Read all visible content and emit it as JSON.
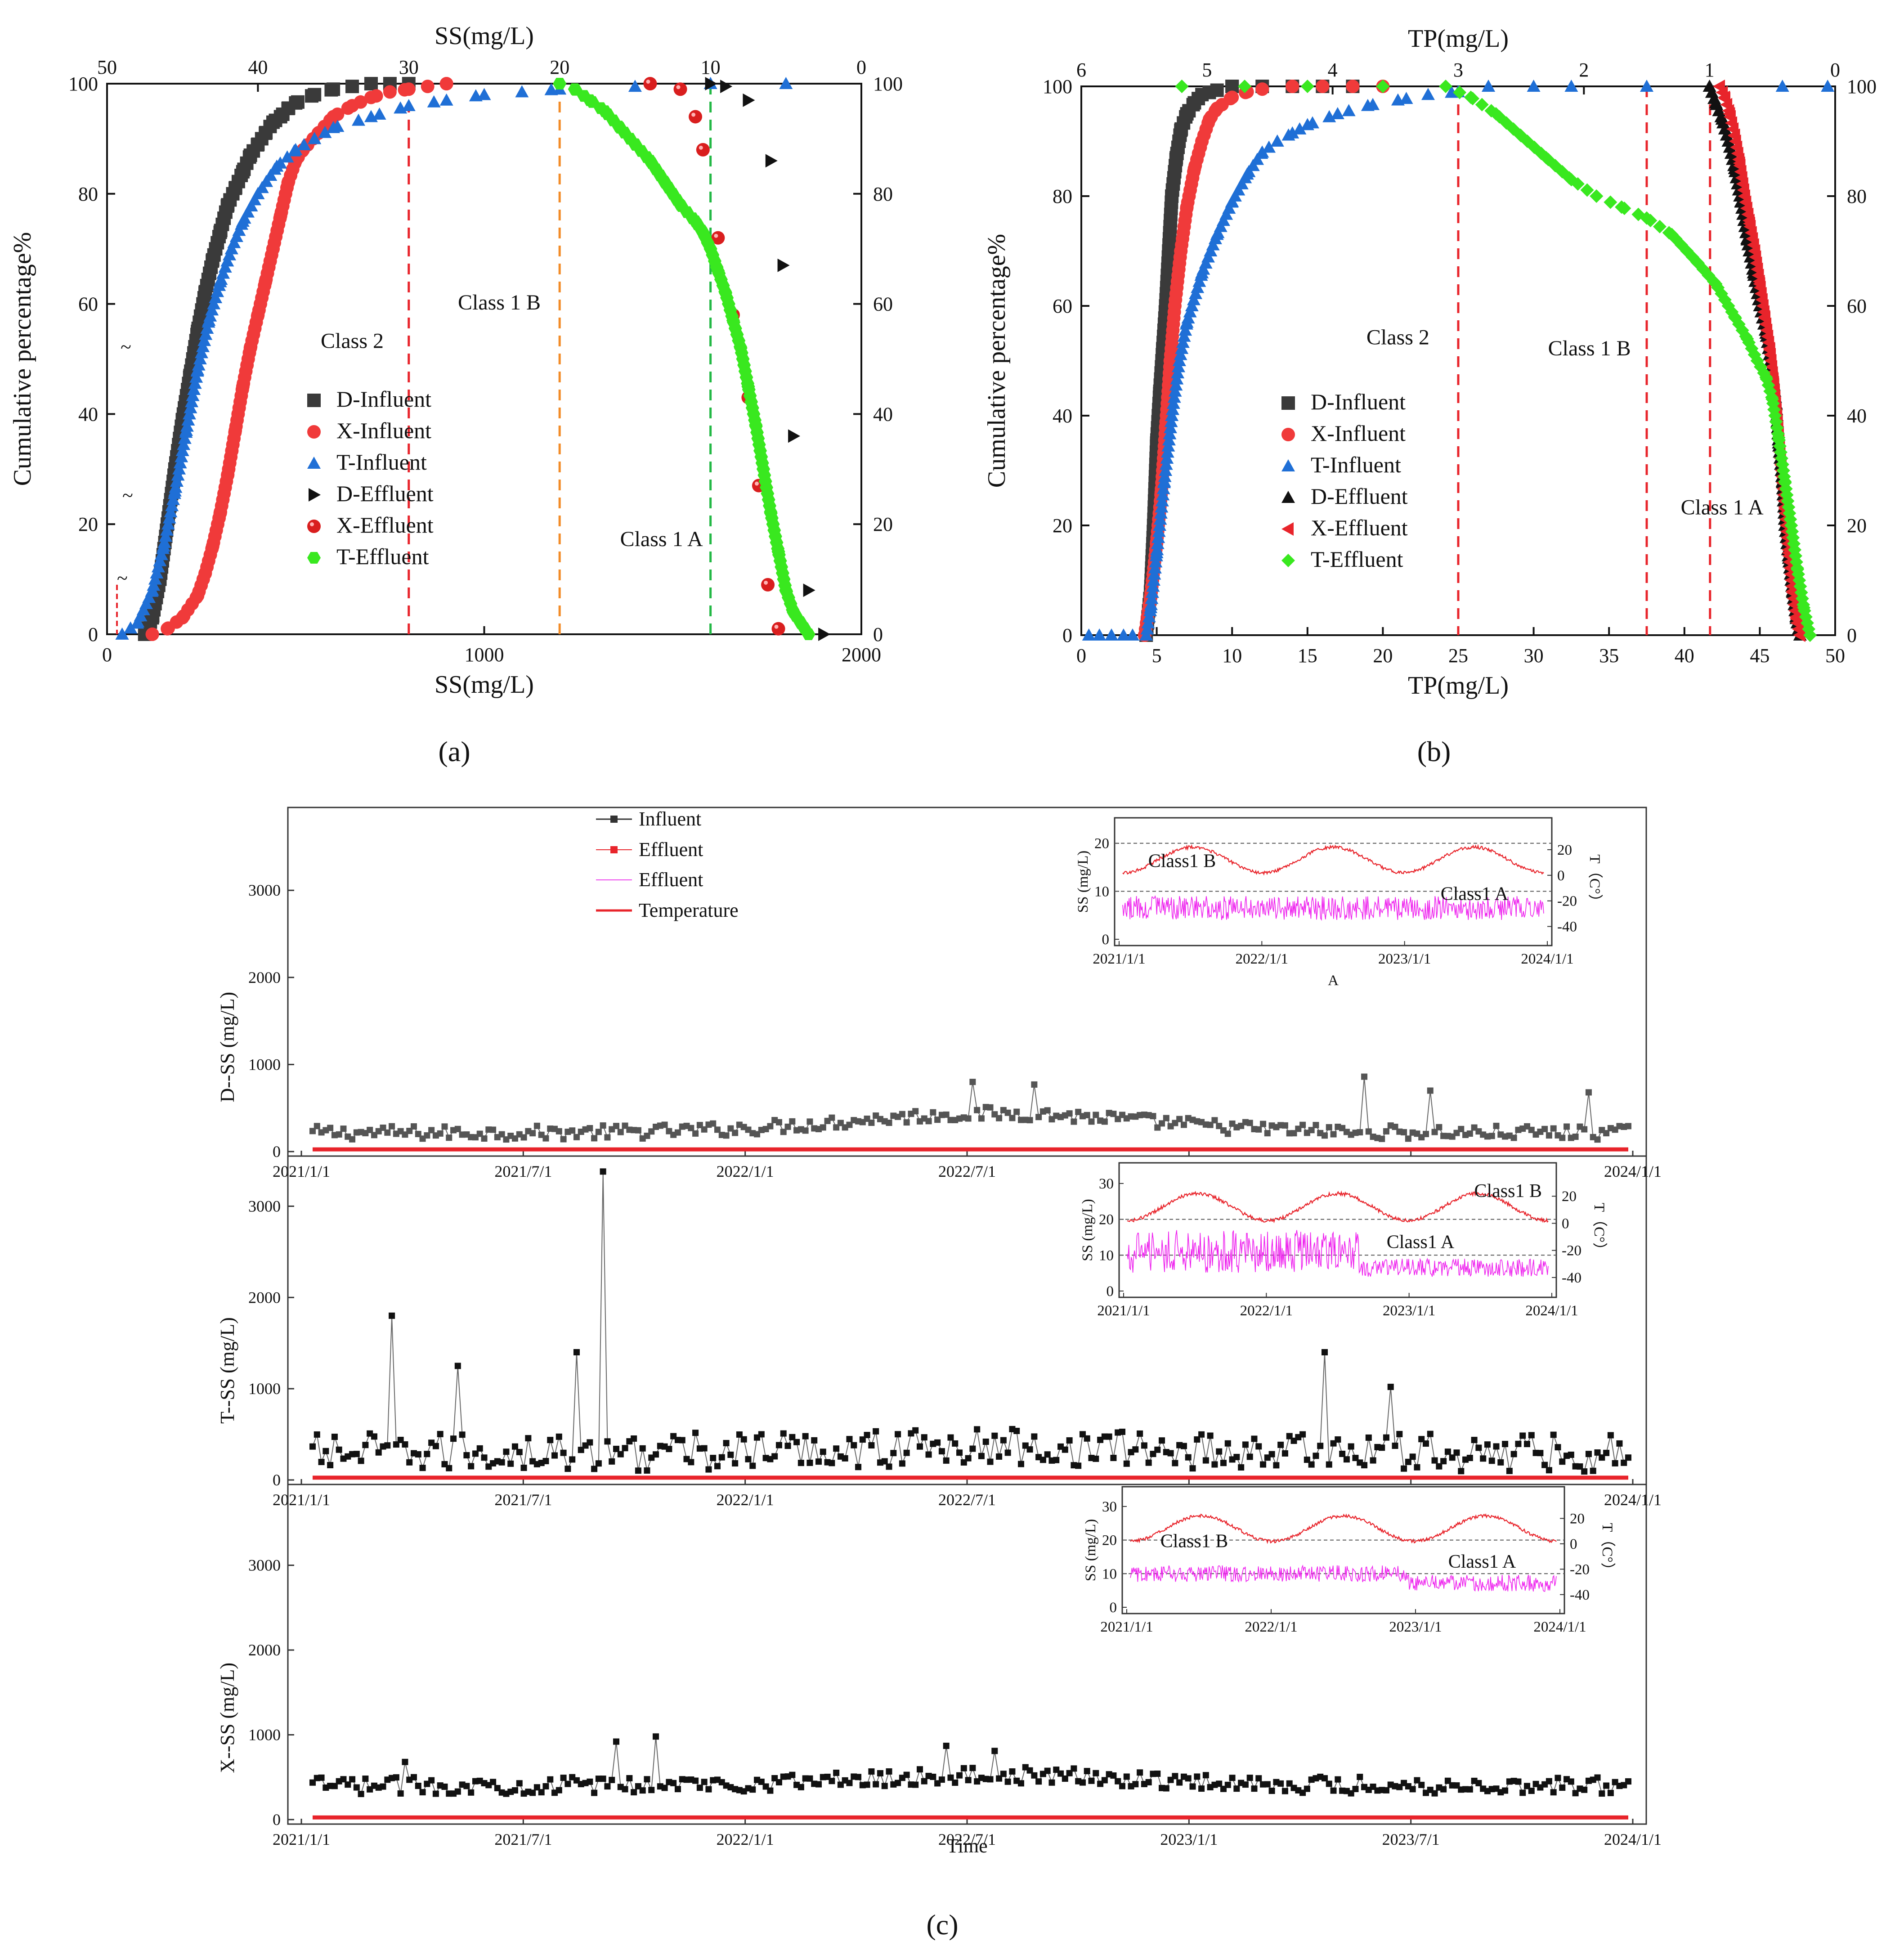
{
  "chart_data": [
    {
      "id": "a",
      "type": "scatter",
      "caption": "(a)",
      "xlabel_bottom": "SS(mg/L)",
      "xlabel_top": "SS(mg/L)",
      "ylabel_left": "Cumulative percentage%",
      "xlim_bottom": [
        0,
        2000
      ],
      "xlim_top": [
        50,
        0
      ],
      "ylim": [
        0,
        100
      ],
      "xticks_bottom": [
        0,
        1000,
        2000
      ],
      "xticks_top": [
        50,
        40,
        30,
        20,
        10,
        0
      ],
      "yticks": [
        0,
        20,
        40,
        60,
        80,
        100
      ],
      "threshold_lines": [
        {
          "x": 800,
          "color": "#e8242b"
        },
        {
          "x": 1200,
          "color": "#f28c28"
        },
        {
          "x": 1600,
          "color": "#22b845"
        }
      ],
      "class_labels": [
        {
          "text": "Class 2",
          "x": 650,
          "y": 52
        },
        {
          "text": "Class 1 B",
          "x": 1040,
          "y": 59
        },
        {
          "text": "Class 1 A",
          "x": 1470,
          "y": 16
        }
      ],
      "legend": [
        "D-Influent",
        "X-Influent",
        "T-Influent",
        "D-Effluent",
        "X-Effluent",
        "T-Effluent"
      ],
      "series": [
        {
          "name": "D-Influent",
          "axis": "bottom",
          "marker": "square",
          "color": "#3a3a3a",
          "dense": true,
          "x": [
            100,
            120,
            140,
            160,
            180,
            200,
            220,
            240,
            260,
            280,
            300,
            320,
            340,
            360,
            380,
            400,
            420,
            440,
            460,
            480,
            500,
            550,
            600,
            650,
            700,
            750,
            800
          ],
          "y": [
            0,
            3,
            10,
            20,
            30,
            39,
            47,
            55,
            62,
            68,
            73,
            78,
            81,
            84,
            87,
            89,
            91,
            93,
            94,
            95.5,
            96.5,
            98,
            99,
            99.5,
            100,
            100,
            100
          ]
        },
        {
          "name": "X-Influent",
          "axis": "bottom",
          "marker": "circle",
          "color": "#f03a3a",
          "dense": true,
          "x": [
            120,
            160,
            200,
            240,
            260,
            280,
            300,
            320,
            340,
            360,
            380,
            400,
            420,
            440,
            460,
            480,
            500,
            520,
            560,
            600,
            650,
            700,
            750,
            800,
            850,
            900
          ],
          "y": [
            0,
            1,
            3,
            7,
            11,
            16,
            22,
            29,
            37,
            45,
            52,
            58,
            64,
            70,
            76,
            82,
            86,
            88,
            91,
            94,
            96,
            97.5,
            98.5,
            99,
            99.5,
            100
          ]
        },
        {
          "name": "T-Influent",
          "axis": "bottom",
          "marker": "triangle",
          "color": "#1f6fd6",
          "dense": true,
          "x": [
            40,
            80,
            120,
            150,
            180,
            210,
            240,
            270,
            300,
            330,
            360,
            400,
            450,
            500,
            550,
            600,
            700,
            800,
            900,
            1000,
            1100,
            1200,
            1400,
            1600,
            1800
          ],
          "y": [
            0,
            2,
            8,
            16,
            26,
            37,
            48,
            57,
            64,
            70,
            75,
            80,
            85,
            88,
            90,
            92,
            94,
            96,
            97,
            98,
            98.5,
            99,
            99.5,
            100,
            100
          ]
        },
        {
          "name": "D-Effluent",
          "axis": "top",
          "marker": "tri-right",
          "color": "#111111",
          "dense": false,
          "x": [
            10,
            9,
            7.5,
            6,
            5.2,
            4.5,
            3.5,
            2.5
          ],
          "y": [
            100,
            99.5,
            97,
            86,
            67,
            36,
            8,
            0
          ]
        },
        {
          "name": "X-Effluent",
          "axis": "top",
          "marker": "sphere",
          "color": "#d91e1e",
          "dense": false,
          "x": [
            14,
            12,
            11,
            10.5,
            9.5,
            8.5,
            7.5,
            6.8,
            6.2,
            5.5
          ],
          "y": [
            100,
            99,
            94,
            88,
            72,
            58,
            43,
            27,
            9,
            1
          ]
        },
        {
          "name": "T-Effluent",
          "axis": "top",
          "marker": "hexagon",
          "color": "#39e81f",
          "dense": true,
          "x": [
            20,
            19,
            18,
            17,
            16,
            15,
            14,
            13,
            12,
            11,
            10.5,
            10,
            9.5,
            9,
            8.5,
            8,
            7.5,
            7,
            6.5,
            6,
            5.5,
            5,
            4.5,
            4,
            3.5
          ],
          "y": [
            100,
            99,
            97,
            95,
            92,
            89,
            86,
            82,
            78,
            75,
            73,
            70,
            66,
            62,
            57,
            52,
            45,
            38,
            30,
            22,
            15,
            8,
            4,
            2,
            0
          ]
        }
      ],
      "stray_markers": [
        "~",
        "~",
        "~"
      ]
    },
    {
      "id": "b",
      "type": "scatter",
      "caption": "(b)",
      "xlabel_bottom": "TP(mg/L)",
      "xlabel_top": "TP(mg/L)",
      "ylabel_left": "Cumulative percentage%",
      "xlim_bottom": [
        0,
        50
      ],
      "xlim_top": [
        6,
        0
      ],
      "ylim": [
        0,
        100
      ],
      "xticks_bottom": [
        0,
        5,
        10,
        15,
        20,
        25,
        30,
        35,
        40,
        45,
        50
      ],
      "xticks_top": [
        6,
        5,
        4,
        3,
        2,
        1,
        0
      ],
      "yticks": [
        0,
        20,
        40,
        60,
        80,
        100
      ],
      "threshold_lines": [
        {
          "x": 25,
          "color": "#e8242b"
        },
        {
          "x": 37.5,
          "color": "#e8242b"
        },
        {
          "x": 41.7,
          "color": "#e8242b"
        }
      ],
      "class_labels": [
        {
          "text": "Class 2",
          "x": 21,
          "y": 53
        },
        {
          "text": "Class 1 B",
          "x": 33.7,
          "y": 51
        },
        {
          "text": "Class 1 A",
          "x": 42.5,
          "y": 22
        }
      ],
      "legend": [
        "D-Influent",
        "X-Influent",
        "T-Influent",
        "D-Effluent",
        "X-Effluent",
        "T-Effluent"
      ],
      "series": [
        {
          "name": "D-Influent",
          "axis": "bottom",
          "marker": "square",
          "color": "#3a3a3a",
          "dense": true,
          "x": [
            4.3,
            4.6,
            4.8,
            5.0,
            5.2,
            5.4,
            5.6,
            5.8,
            6.0,
            6.3,
            6.6,
            7.0,
            7.5,
            8,
            9,
            10,
            12,
            14,
            16,
            18
          ],
          "y": [
            0,
            8,
            20,
            35,
            44,
            52,
            60,
            70,
            80,
            87,
            92,
            95,
            97,
            98.5,
            99.3,
            100,
            100,
            100,
            100,
            100
          ]
        },
        {
          "name": "X-Influent",
          "axis": "bottom",
          "marker": "circle",
          "color": "#f03a3a",
          "dense": true,
          "x": [
            4.2,
            4.6,
            5.0,
            5.3,
            5.6,
            5.9,
            6.2,
            6.6,
            7.0,
            7.5,
            8.0,
            8.5,
            9.0,
            10,
            11,
            12,
            14,
            16,
            18,
            20
          ],
          "y": [
            0,
            7,
            17,
            26,
            38,
            50,
            60,
            70,
            78,
            85,
            90,
            94,
            96,
            98,
            99,
            99.5,
            100,
            100,
            100,
            100
          ]
        },
        {
          "name": "T-Influent",
          "axis": "bottom",
          "marker": "triangle",
          "color": "#1f6fd6",
          "dense": true,
          "x": [
            4.3,
            4.6,
            5,
            5.5,
            6,
            6.5,
            7,
            8,
            9,
            10,
            11,
            12,
            13,
            14,
            15,
            17,
            19,
            21,
            23,
            25,
            27
          ],
          "y": [
            0,
            5,
            15,
            28,
            40,
            50,
            57,
            66,
            73,
            79,
            84,
            88,
            90,
            91.5,
            93,
            95,
            96.5,
            97.5,
            98.5,
            99,
            100
          ]
        },
        {
          "name": "T-Influent (sparse)",
          "axis": "bottom",
          "marker": "triangle",
          "color": "#1f6fd6",
          "dense": false,
          "x": [
            0.5,
            1.2,
            2.0,
            2.8,
            3.4,
            30,
            32.5,
            37.5,
            46.5,
            49.5
          ],
          "y": [
            0,
            0,
            0,
            0,
            0,
            100,
            100,
            100,
            100,
            100
          ]
        },
        {
          "name": "D-Effluent",
          "axis": "top",
          "marker": "triangle",
          "color": "#111111",
          "dense": true,
          "x": [
            1.0,
            0.95,
            0.9,
            0.85,
            0.8,
            0.75,
            0.7,
            0.65,
            0.6,
            0.55,
            0.5,
            0.47,
            0.45,
            0.42,
            0.4,
            0.37,
            0.34,
            0.31,
            0.28
          ],
          "y": [
            100,
            97,
            94,
            90,
            85,
            79,
            72,
            66,
            60,
            55,
            48,
            42,
            35,
            28,
            20,
            14,
            8,
            3,
            0
          ]
        },
        {
          "name": "X-Effluent",
          "axis": "top",
          "marker": "tri-left",
          "color": "#e8242b",
          "dense": true,
          "x": [
            0.92,
            0.88,
            0.84,
            0.8,
            0.76,
            0.72,
            0.68,
            0.64,
            0.6,
            0.56,
            0.52,
            0.49,
            0.46,
            0.43,
            0.4,
            0.37,
            0.34,
            0.31,
            0.28
          ],
          "y": [
            100,
            98,
            95,
            91,
            86,
            80,
            75,
            70,
            64,
            58,
            52,
            46,
            39,
            31,
            23,
            15,
            8,
            3,
            0
          ]
        },
        {
          "name": "T-Effluent",
          "axis": "top",
          "marker": "diamond",
          "color": "#39e81f",
          "dense": true,
          "x": [
            5.2,
            4.7,
            4.2,
            3.6,
            3.1,
            2.9,
            2.7,
            2.5,
            2.3,
            2.1,
            1.9,
            1.7,
            1.5,
            1.3,
            1.1,
            0.95,
            0.8,
            0.7,
            0.62,
            0.55,
            0.5,
            0.45,
            0.4,
            0.35,
            0.3,
            0.25,
            0.2
          ],
          "y": [
            100,
            100,
            100,
            100,
            100,
            98,
            95,
            91,
            87,
            83,
            80,
            78,
            76,
            73,
            68,
            64,
            58,
            54,
            50,
            47,
            43,
            36,
            28,
            20,
            12,
            5,
            0
          ]
        }
      ]
    },
    {
      "id": "c",
      "type": "line",
      "caption": "(c)",
      "xlabel": "Time",
      "legend": [
        "Influent",
        "Effluent",
        "Effluent",
        "Temperature"
      ],
      "legend_colors": [
        "#333333",
        "#e8242b",
        "#ee44ee",
        "#e8242b"
      ],
      "shared_x_ticks": [
        "2021/1/1",
        "2021/7/1",
        "2022/1/1",
        "2022/7/1",
        "2023/1/1",
        "2023/7/1",
        "2024/1/1"
      ],
      "panels": [
        {
          "ylabel": "D--SS (mg/L)",
          "yticks": [
            0,
            1000,
            2000,
            3000
          ],
          "ylim": [
            0,
            3900
          ],
          "influent_base": 200,
          "influent_hump": 220,
          "influent_noise": 160,
          "influent_color": "#555555",
          "spikes": [
            {
              "t": 0.5,
              "v": 800
            },
            {
              "t": 0.55,
              "v": 770
            },
            {
              "t": 0.8,
              "v": 860
            },
            {
              "t": 0.85,
              "v": 700
            },
            {
              "t": 0.97,
              "v": 680
            }
          ]
        },
        {
          "ylabel": "T--SS (mg/L)",
          "yticks": [
            0,
            1000,
            2000,
            3000
          ],
          "ylim": [
            0,
            3500
          ],
          "influent_base": 260,
          "influent_hump": 60,
          "influent_noise": 420,
          "influent_color": "#111111",
          "spikes": [
            {
              "t": 0.06,
              "v": 1800
            },
            {
              "t": 0.22,
              "v": 3380
            },
            {
              "t": 0.2,
              "v": 1400
            },
            {
              "t": 0.77,
              "v": 1400
            },
            {
              "t": 0.82,
              "v": 1020
            },
            {
              "t": 0.11,
              "v": 1250
            }
          ]
        },
        {
          "ylabel": "X--SS (mg/L)",
          "yticks": [
            0,
            1000,
            2000,
            3000
          ],
          "ylim": [
            0,
            3900
          ],
          "influent_base": 380,
          "influent_hump": 120,
          "influent_noise": 200,
          "influent_color": "#111111",
          "spikes": [
            {
              "t": 0.07,
              "v": 680
            },
            {
              "t": 0.23,
              "v": 920
            },
            {
              "t": 0.26,
              "v": 980
            },
            {
              "t": 0.48,
              "v": 870
            },
            {
              "t": 0.52,
              "v": 810
            }
          ]
        }
      ],
      "insets": [
        {
          "panel": 0,
          "ss_label": "SS (mg/L)",
          "t_label": "T（C°）",
          "ss_ticks": [
            0,
            10,
            20
          ],
          "t_ticks": [
            20,
            0,
            -20,
            -40
          ],
          "x_ticks": [
            "2021/1/1",
            "2022/1/1",
            "2023/1/1",
            "2024/1/1"
          ],
          "classes": [
            "Class1 B",
            "Class1 A"
          ],
          "limit_lines": [
            20,
            10
          ],
          "eff_mean": 6.5,
          "below": "A"
        },
        {
          "panel": 1,
          "ss_label": "SS (mg/L)",
          "t_label": "T（C°）",
          "ss_ticks": [
            0,
            10,
            20,
            30
          ],
          "t_ticks": [
            20,
            0,
            -20,
            -40
          ],
          "x_ticks": [
            "2021/1/1",
            "2022/1/1",
            "2023/1/1",
            "2024/1/1"
          ],
          "classes": [
            "Class1 B",
            "Class1 A"
          ],
          "limit_lines": [
            20,
            10
          ],
          "eff_mean": 10
        },
        {
          "panel": 2,
          "ss_label": "SS (mg/L)",
          "t_label": "T（C°）",
          "ss_ticks": [
            0,
            10,
            20,
            30
          ],
          "t_ticks": [
            20,
            0,
            -20,
            -40
          ],
          "x_ticks": [
            "2021/1/1",
            "2022/1/1",
            "2023/1/1",
            "2024/1/1"
          ],
          "classes": [
            "Class1 B",
            "Class1 A"
          ],
          "limit_lines": [
            20,
            10
          ],
          "eff_mean": 9.5
        }
      ]
    }
  ]
}
